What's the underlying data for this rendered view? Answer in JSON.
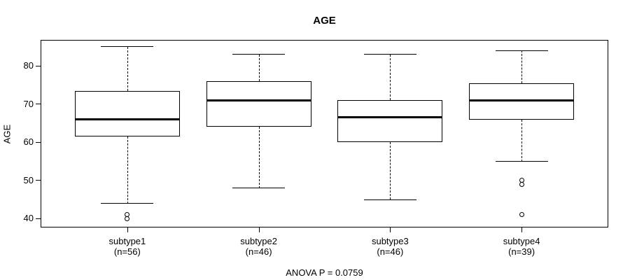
{
  "figure": {
    "background": "#ffffff",
    "line_color": "#000000",
    "text_color": "#000000"
  },
  "chart_data": {
    "type": "boxplot",
    "title": "AGE",
    "ylabel": "AGE",
    "xlabel": "",
    "annotation": "ANOVA P = 0.0759",
    "grid": false,
    "legend": "none",
    "yticks": [
      40,
      50,
      60,
      70,
      80
    ],
    "ylim": [
      37.7,
      86.8
    ],
    "groups": [
      {
        "label": "subtype1",
        "sublabel": "(n=56)",
        "n": 56,
        "whisker_low": 44,
        "q1": 61.5,
        "median": 66,
        "q3": 73.5,
        "whisker_high": 85,
        "outliers": [
          41,
          40
        ]
      },
      {
        "label": "subtype2",
        "sublabel": "(n=46)",
        "n": 46,
        "whisker_low": 48,
        "q1": 64,
        "median": 71,
        "q3": 76,
        "whisker_high": 83,
        "outliers": []
      },
      {
        "label": "subtype3",
        "sublabel": "(n=46)",
        "n": 46,
        "whisker_low": 45,
        "q1": 60,
        "median": 66.5,
        "q3": 71,
        "whisker_high": 83,
        "outliers": []
      },
      {
        "label": "subtype4",
        "sublabel": "(n=39)",
        "n": 39,
        "whisker_low": 55,
        "q1": 66,
        "median": 71,
        "q3": 75.5,
        "whisker_high": 84,
        "outliers": [
          50,
          49,
          41
        ]
      }
    ]
  }
}
